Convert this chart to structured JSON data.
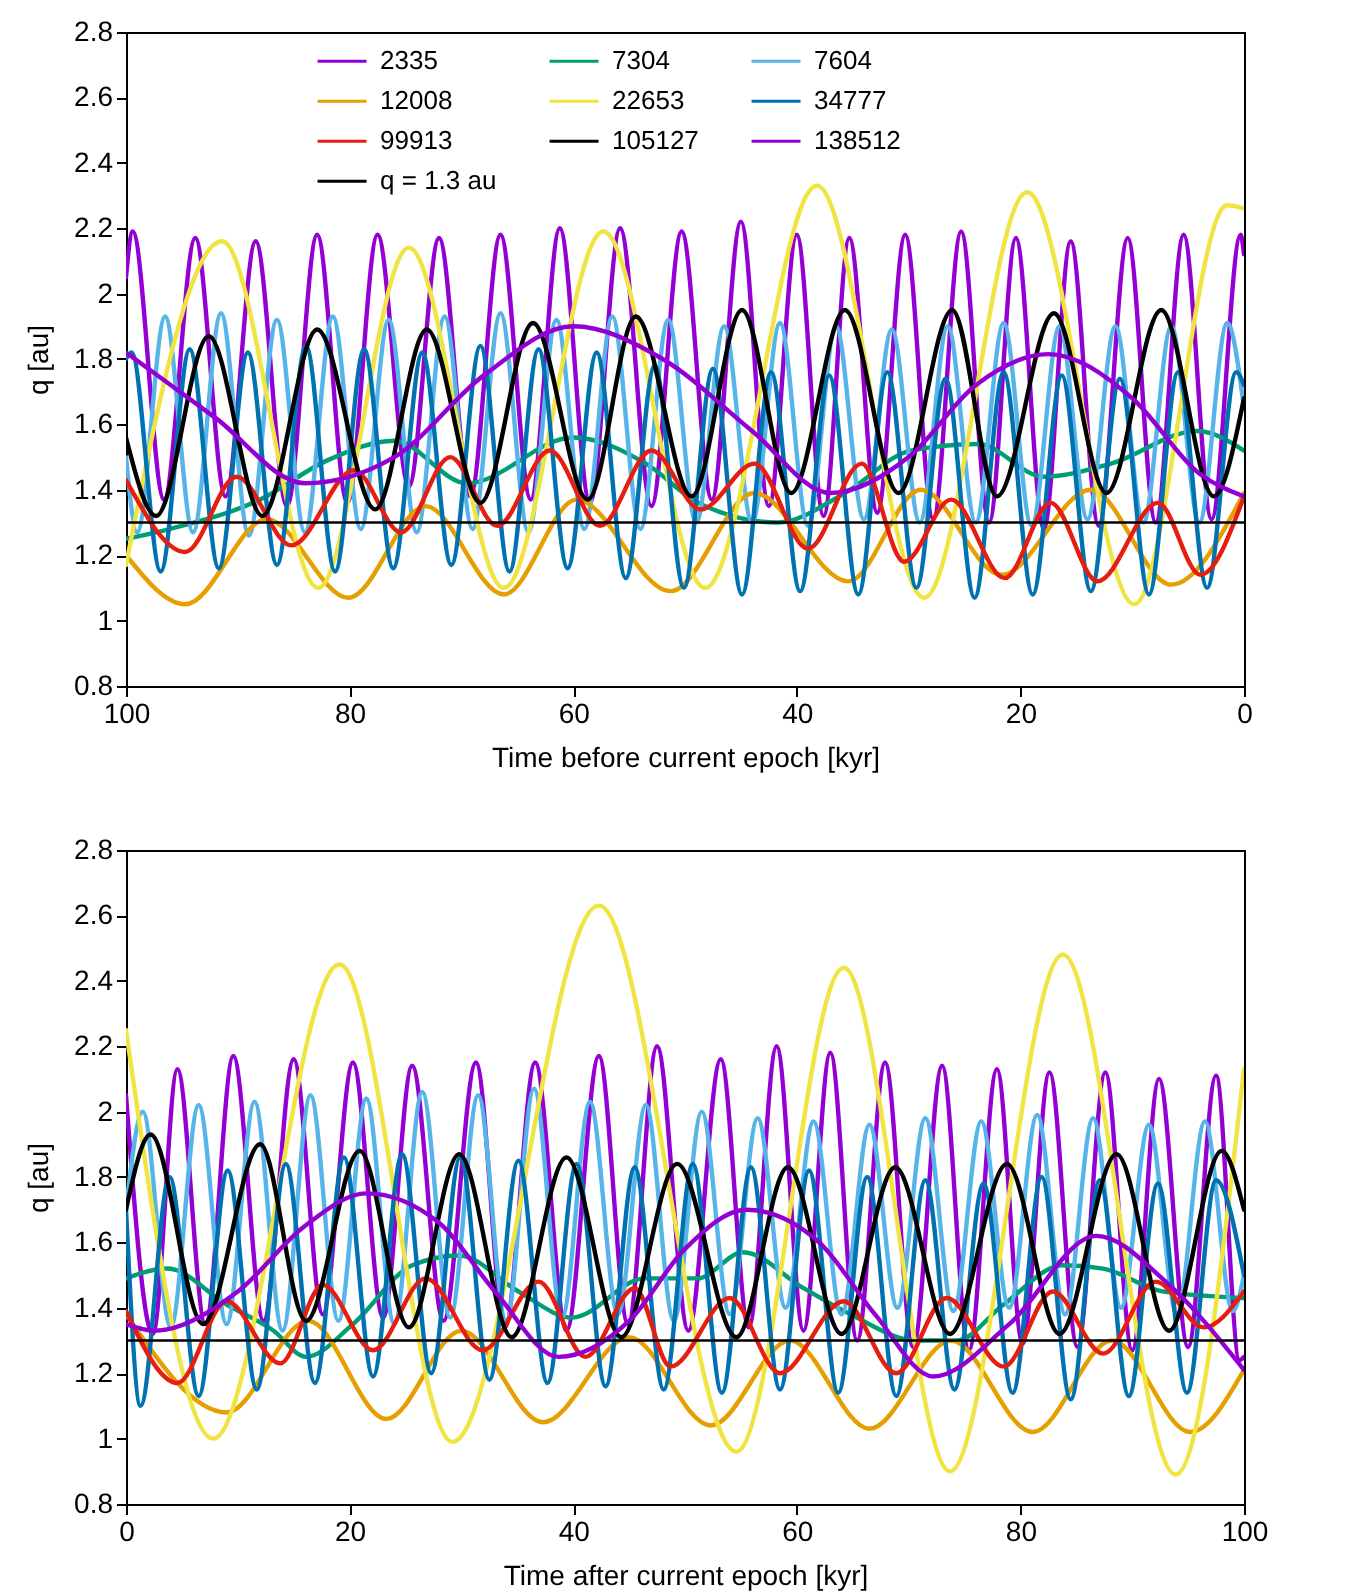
{
  "chart_data": [
    {
      "type": "line",
      "xlabel": "Time before current epoch [kyr]",
      "ylabel": "q [au]",
      "xlim": [
        100,
        0
      ],
      "xticks": [
        100,
        80,
        60,
        40,
        20,
        0
      ],
      "ylim": [
        0.8,
        2.8
      ],
      "yticks": [
        0.8,
        1,
        1.2,
        1.4,
        1.6,
        1.8,
        2,
        2.2,
        2.4,
        2.6,
        2.8
      ],
      "legend": "top",
      "series": [
        {
          "name": "2335",
          "color": "#9400d3",
          "x": [
            100,
            99.4,
            96.6,
            93.8,
            91.1,
            88.4,
            85.6,
            82.9,
            80.2,
            77.5,
            74.7,
            72.0,
            69.2,
            66.5,
            63.8,
            61.2,
            58.5,
            55.8,
            53.0,
            50.3,
            47.6,
            45.0,
            42.5,
            40.0,
            37.6,
            35.3,
            32.8,
            30.3,
            27.8,
            25.3,
            22.8,
            20.4,
            17.9,
            15.5,
            13.0,
            10.4,
            7.9,
            5.4,
            2.9,
            0.3,
            0
          ],
          "values": [
            2.05,
            2.19,
            1.37,
            2.17,
            1.38,
            2.16,
            1.35,
            2.18,
            1.36,
            2.18,
            1.41,
            2.17,
            1.38,
            2.18,
            1.37,
            2.2,
            1.36,
            2.2,
            1.35,
            2.19,
            1.37,
            2.22,
            1.35,
            2.18,
            1.32,
            2.17,
            1.33,
            2.18,
            1.31,
            2.19,
            1.3,
            2.17,
            1.28,
            2.16,
            1.29,
            2.17,
            1.3,
            2.18,
            1.31,
            2.18,
            2.12
          ]
        },
        {
          "name": "7304",
          "color": "#009e73",
          "x": [
            100,
            96.1,
            88,
            82,
            76,
            69.5,
            60,
            53.5,
            48.8,
            41.7,
            35.7,
            29.8,
            23.8,
            17.9,
            11.9,
            4.2,
            0
          ],
          "values": [
            1.25,
            1.28,
            1.37,
            1.49,
            1.55,
            1.42,
            1.56,
            1.48,
            1.36,
            1.3,
            1.39,
            1.52,
            1.54,
            1.44,
            1.48,
            1.58,
            1.52
          ]
        },
        {
          "name": "7604",
          "color": "#56b4e9",
          "x": [
            100,
            99,
            96.5,
            94,
            91.5,
            89,
            86.5,
            84,
            81.5,
            79,
            76.5,
            74,
            71.5,
            69,
            66.5,
            64,
            61.5,
            59,
            56.5,
            54,
            51.5,
            49,
            46.5,
            44,
            41.5,
            39,
            36.5,
            34,
            31.5,
            29,
            26.5,
            24,
            21.5,
            19,
            16.5,
            14,
            11.5,
            9,
            6.5,
            4,
            1.5,
            0
          ],
          "values": [
            1.5,
            1.27,
            1.93,
            1.27,
            1.94,
            1.26,
            1.92,
            1.27,
            1.93,
            1.28,
            1.92,
            1.27,
            1.93,
            1.28,
            1.94,
            1.27,
            1.92,
            1.28,
            1.93,
            1.28,
            1.92,
            1.3,
            1.9,
            1.3,
            1.91,
            1.29,
            1.9,
            1.31,
            1.89,
            1.3,
            1.9,
            1.3,
            1.91,
            1.29,
            1.9,
            1.31,
            1.9,
            1.3,
            1.9,
            1.3,
            1.91,
            1.65
          ]
        },
        {
          "name": "12008",
          "color": "#e69f00",
          "x": [
            100,
            94.7,
            87.4,
            80.1,
            73.2,
            66.2,
            59.7,
            51.3,
            43.8,
            35.4,
            28.9,
            21.7,
            13.7,
            6.5,
            0
          ],
          "values": [
            1.2,
            1.05,
            1.31,
            1.07,
            1.35,
            1.08,
            1.37,
            1.09,
            1.39,
            1.12,
            1.4,
            1.14,
            1.4,
            1.11,
            1.39
          ]
        },
        {
          "name": "22653",
          "color": "#f0e442",
          "x": [
            100,
            91.4,
            82.8,
            74.7,
            66.2,
            57.3,
            48.2,
            38.2,
            28.6,
            19.4,
            9.8,
            1.5,
            0
          ],
          "values": [
            1.17,
            2.16,
            1.1,
            2.14,
            1.1,
            2.19,
            1.1,
            2.33,
            1.07,
            2.31,
            1.05,
            2.27,
            2.26
          ]
        },
        {
          "name": "34777",
          "color": "#0072b2",
          "x": [
            100,
            99.5,
            96.9,
            94.3,
            91.7,
            89.1,
            86.5,
            83.9,
            81.3,
            78.7,
            76.1,
            73.5,
            70.9,
            68.3,
            65.7,
            63.1,
            60.5,
            57.9,
            55.3,
            52.7,
            50.1,
            47.5,
            44.9,
            42.3,
            39.7,
            37.1,
            34.5,
            31.9,
            29.3,
            26.7,
            24.1,
            21.5,
            18.9,
            16.3,
            13.7,
            11.1,
            8.5,
            5.9,
            3.3,
            0.7,
            0
          ],
          "values": [
            1.8,
            1.82,
            1.15,
            1.83,
            1.16,
            1.82,
            1.17,
            1.84,
            1.15,
            1.83,
            1.16,
            1.82,
            1.17,
            1.84,
            1.15,
            1.83,
            1.16,
            1.82,
            1.13,
            1.78,
            1.1,
            1.77,
            1.08,
            1.76,
            1.09,
            1.75,
            1.08,
            1.76,
            1.1,
            1.74,
            1.07,
            1.76,
            1.08,
            1.75,
            1.09,
            1.74,
            1.08,
            1.76,
            1.1,
            1.76,
            1.72
          ]
        },
        {
          "name": "99913",
          "color": "#e51e10",
          "x": [
            100,
            94.7,
            90.1,
            85.2,
            79.6,
            75.4,
            71.0,
            66.8,
            62.1,
            57.6,
            53.0,
            48.6,
            43.8,
            39.0,
            34.2,
            30.4,
            26.2,
            21.4,
            17.3,
            13.1,
            7.7,
            3.9,
            0
          ],
          "values": [
            1.43,
            1.21,
            1.44,
            1.23,
            1.46,
            1.27,
            1.5,
            1.29,
            1.52,
            1.29,
            1.52,
            1.34,
            1.48,
            1.22,
            1.48,
            1.18,
            1.37,
            1.13,
            1.36,
            1.12,
            1.36,
            1.14,
            1.38
          ]
        },
        {
          "name": "105127",
          "color": "#000000",
          "x": [
            100,
            97.3,
            92.6,
            87.8,
            82.9,
            77.7,
            73.1,
            68.3,
            63.6,
            58.7,
            54.4,
            49.4,
            44.9,
            40.5,
            35.7,
            30.9,
            26.1,
            22.1,
            17.0,
            12.3,
            7.4,
            2.7,
            0
          ],
          "values": [
            1.56,
            1.32,
            1.87,
            1.32,
            1.89,
            1.34,
            1.89,
            1.36,
            1.91,
            1.37,
            1.93,
            1.38,
            1.95,
            1.39,
            1.95,
            1.39,
            1.95,
            1.38,
            1.94,
            1.39,
            1.95,
            1.38,
            1.68
          ]
        },
        {
          "name": "138512",
          "color": "#9400d3",
          "x": [
            100,
            92,
            84,
            76,
            68,
            60,
            52,
            44,
            37,
            30,
            24,
            17.5,
            10,
            4,
            0
          ],
          "values": [
            1.82,
            1.62,
            1.42,
            1.5,
            1.75,
            1.9,
            1.8,
            1.58,
            1.39,
            1.5,
            1.72,
            1.815,
            1.68,
            1.45,
            1.38
          ]
        }
      ],
      "ref_lines": [
        {
          "axis": "y",
          "value": 1.3,
          "label": "q = 1.3 au",
          "color": "#000000"
        }
      ]
    },
    {
      "type": "line",
      "xlabel": "Time after current epoch [kyr]",
      "ylabel": "q [au]",
      "xlim": [
        0,
        100
      ],
      "xticks": [
        0,
        20,
        40,
        60,
        80,
        100
      ],
      "ylim": [
        0.8,
        2.8
      ],
      "yticks": [
        0.8,
        1,
        1.2,
        1.4,
        1.6,
        1.8,
        2,
        2.2,
        2.4,
        2.6,
        2.8
      ],
      "series": [
        {
          "color": "#9400d3",
          "x": [
            0,
            2.4,
            4.6,
            7.1,
            9.6,
            12.3,
            15.0,
            17.6,
            20.3,
            23.0,
            25.6,
            28.4,
            31.3,
            33.9,
            36.6,
            39.4,
            42.3,
            44.9,
            47.5,
            50.3,
            53.2,
            55.7,
            58.2,
            60.6,
            63.0,
            65.4,
            67.9,
            70.4,
            73.0,
            75.4,
            77.9,
            80.2,
            82.6,
            85.1,
            87.6,
            90.0,
            92.4,
            95.0,
            97.5,
            99.6,
            100
          ],
          "values": [
            2.05,
            1.32,
            2.13,
            1.35,
            2.17,
            1.36,
            2.16,
            1.38,
            2.15,
            1.37,
            2.14,
            1.36,
            2.15,
            1.34,
            2.15,
            1.33,
            2.17,
            1.35,
            2.2,
            1.33,
            2.16,
            1.34,
            2.2,
            1.33,
            2.18,
            1.3,
            2.15,
            1.28,
            2.14,
            1.27,
            2.13,
            1.29,
            2.12,
            1.28,
            2.12,
            1.27,
            2.1,
            1.28,
            2.11,
            1.24,
            1.25
          ]
        },
        {
          "color": "#009e73",
          "x": [
            0,
            3.7,
            9.0,
            13.2,
            16.1,
            20.3,
            25.6,
            29.8,
            35.1,
            39.9,
            46.4,
            51.1,
            55.2,
            60.6,
            64.8,
            70.7,
            74.3,
            78.5,
            83.8,
            87.4,
            92.7,
            100
          ],
          "values": [
            1.49,
            1.52,
            1.41,
            1.33,
            1.25,
            1.35,
            1.53,
            1.56,
            1.45,
            1.37,
            1.49,
            1.49,
            1.57,
            1.46,
            1.38,
            1.3,
            1.3,
            1.41,
            1.53,
            1.52,
            1.45,
            1.43
          ]
        },
        {
          "color": "#56b4e9",
          "x": [
            0,
            1.5,
            4,
            6.5,
            9,
            11.5,
            14,
            16.5,
            19,
            21.5,
            24,
            26.5,
            29,
            31.5,
            34,
            36.5,
            39,
            41.5,
            44,
            46.5,
            49,
            51.5,
            54,
            56.5,
            59,
            61.5,
            64,
            66.5,
            69,
            71.5,
            74,
            76.5,
            79,
            81.5,
            84,
            86.5,
            89,
            91.5,
            94,
            96.5,
            99,
            100
          ],
          "values": [
            1.7,
            2.0,
            1.34,
            2.02,
            1.35,
            2.03,
            1.33,
            2.05,
            1.36,
            2.04,
            1.35,
            2.06,
            1.37,
            2.05,
            1.36,
            2.07,
            1.37,
            2.03,
            1.38,
            2.02,
            1.36,
            2.0,
            1.38,
            1.98,
            1.4,
            1.97,
            1.38,
            1.96,
            1.4,
            1.98,
            1.39,
            1.97,
            1.4,
            1.99,
            1.38,
            1.98,
            1.4,
            1.96,
            1.38,
            1.97,
            1.39,
            1.5
          ]
        },
        {
          "color": "#e69f00",
          "x": [
            0,
            9.0,
            16.3,
            23.3,
            30.0,
            37.3,
            45.0,
            52.3,
            59.4,
            66.5,
            73.8,
            81.1,
            88.2,
            95.2,
            100
          ],
          "values": [
            1.38,
            1.08,
            1.36,
            1.06,
            1.33,
            1.05,
            1.31,
            1.04,
            1.3,
            1.03,
            1.3,
            1.02,
            1.3,
            1.02,
            1.21
          ]
        },
        {
          "color": "#f0e442",
          "x": [
            0,
            7.8,
            19.1,
            29.2,
            42.3,
            54.6,
            64.2,
            73.7,
            83.8,
            93.9,
            100
          ],
          "values": [
            2.25,
            1.0,
            2.45,
            0.99,
            2.63,
            0.96,
            2.44,
            0.9,
            2.48,
            0.89,
            2.13
          ]
        },
        {
          "color": "#0072b2",
          "x": [
            0,
            1.3,
            3.9,
            6.5,
            9.1,
            11.7,
            14.3,
            16.9,
            19.5,
            22.1,
            24.7,
            27.3,
            29.9,
            32.5,
            35.1,
            37.7,
            40.3,
            42.9,
            45.5,
            48.1,
            50.7,
            53.3,
            55.9,
            58.5,
            61.1,
            63.7,
            66.3,
            68.9,
            71.5,
            74.1,
            76.7,
            79.3,
            81.9,
            84.5,
            87.1,
            89.7,
            92.3,
            94.9,
            97.5,
            100
          ],
          "values": [
            1.7,
            1.1,
            1.8,
            1.13,
            1.82,
            1.15,
            1.84,
            1.17,
            1.86,
            1.19,
            1.87,
            1.2,
            1.86,
            1.18,
            1.85,
            1.17,
            1.84,
            1.16,
            1.83,
            1.15,
            1.84,
            1.14,
            1.83,
            1.15,
            1.82,
            1.14,
            1.8,
            1.13,
            1.79,
            1.15,
            1.78,
            1.14,
            1.8,
            1.12,
            1.79,
            1.13,
            1.78,
            1.14,
            1.79,
            1.5
          ]
        },
        {
          "color": "#e51e10",
          "x": [
            0,
            4.6,
            9.0,
            13.8,
            17.6,
            22.1,
            26.8,
            31.9,
            36.9,
            41.1,
            45.5,
            48.7,
            54.0,
            58.5,
            64.2,
            68.9,
            73.4,
            78.5,
            82.9,
            87.4,
            92.1,
            96.4,
            100
          ],
          "values": [
            1.39,
            1.17,
            1.42,
            1.23,
            1.47,
            1.27,
            1.49,
            1.27,
            1.48,
            1.25,
            1.46,
            1.22,
            1.43,
            1.2,
            1.42,
            1.2,
            1.43,
            1.22,
            1.45,
            1.26,
            1.48,
            1.34,
            1.45
          ]
        },
        {
          "color": "#000000",
          "x": [
            0,
            2.2,
            6.9,
            12.0,
            16.1,
            20.9,
            25.3,
            29.8,
            34.5,
            39.4,
            44.3,
            49.3,
            54.6,
            59.2,
            64.0,
            68.8,
            73.7,
            78.8,
            83.5,
            88.6,
            93.3,
            98.0,
            100
          ],
          "values": [
            1.7,
            1.93,
            1.35,
            1.9,
            1.36,
            1.88,
            1.34,
            1.87,
            1.31,
            1.86,
            1.31,
            1.84,
            1.31,
            1.83,
            1.32,
            1.83,
            1.32,
            1.84,
            1.32,
            1.87,
            1.33,
            1.88,
            1.7
          ]
        },
        {
          "color": "#9400d3",
          "x": [
            0,
            2.5,
            10,
            16,
            21.5,
            28,
            33,
            38.7,
            45,
            50,
            55.5,
            62,
            67,
            72.2,
            79,
            86.8,
            93,
            100
          ],
          "values": [
            1.35,
            1.33,
            1.45,
            1.65,
            1.75,
            1.66,
            1.45,
            1.25,
            1.36,
            1.58,
            1.7,
            1.6,
            1.38,
            1.19,
            1.35,
            1.62,
            1.48,
            1.21
          ]
        }
      ],
      "ref_lines": [
        {
          "axis": "y",
          "value": 1.3,
          "color": "#000000"
        }
      ]
    }
  ]
}
